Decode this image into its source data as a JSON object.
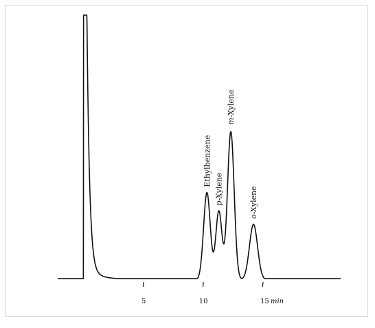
{
  "chart_data": {
    "type": "line",
    "title": "",
    "xlabel": "min",
    "ylabel": "",
    "grid": false,
    "x_ticks": [
      5,
      10,
      15
    ],
    "x_tick_labels": [
      "5",
      "10",
      "15"
    ],
    "x_unit": "min",
    "xlim": [
      -2.2,
      21.5
    ],
    "ylim": [
      0,
      100
    ],
    "baseline": 0.5,
    "peaks": [
      {
        "name": "",
        "x_label": "",
        "retention_time": 0.1,
        "height": 100,
        "width": 0.14,
        "flat_top": true
      },
      {
        "name": "Ethylbenzene",
        "x_label": "Ethylbenzene",
        "retention_time": 10.3,
        "height": 33,
        "width": 0.28
      },
      {
        "name": "p-Xylene",
        "x_label": "p-Xylene",
        "retention_time": 11.3,
        "height": 26,
        "width": 0.26
      },
      {
        "name": "m-Xylene",
        "x_label": "m-Xylene",
        "retention_time": 12.3,
        "height": 56,
        "width": 0.28
      },
      {
        "name": "o-Xylene",
        "x_label": "o-Xylene",
        "retention_time": 14.2,
        "height": 21,
        "width": 0.34
      }
    ]
  },
  "labels": {
    "tick_5": "5",
    "tick_10": "10",
    "tick_15": "15",
    "unit": "min",
    "ethylbenzene": "Ethylbenzene",
    "p_xylene_prefix": "p",
    "p_xylene_suffix": "-Xylene",
    "m_xylene_prefix": "m",
    "m_xylene_suffix": "-Xylene",
    "o_xylene_prefix": "o",
    "o_xylene_suffix": "-Xylene"
  }
}
